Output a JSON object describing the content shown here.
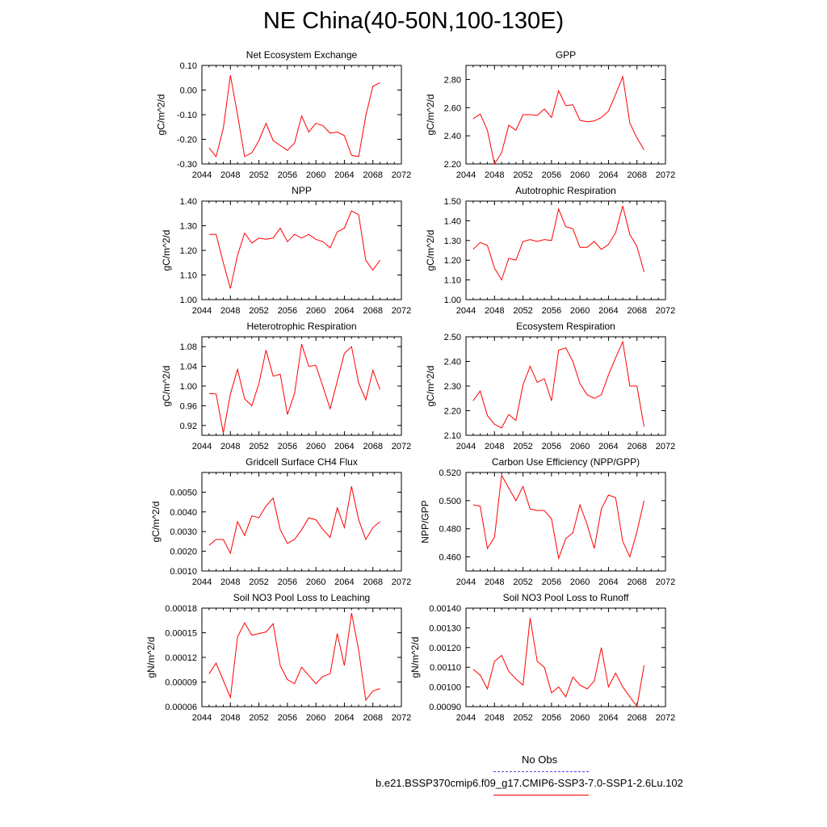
{
  "figure": {
    "title": "NE China(40-50N,100-130E)",
    "legend": [
      {
        "label": "No Obs",
        "color": "#4a4ae8",
        "dash": "dashed"
      },
      {
        "label": "b.e21.BSSP370cmip6.f09_g17.CMIP6-SSP3-7.0-SSP1-2.6Lu.102",
        "color": "#ff0000",
        "dash": "solid"
      }
    ]
  },
  "chart_data": [
    {
      "type": "line",
      "title": "Net Ecosystem Exchange",
      "ylabel": "gC/m^2/d",
      "xlabel": "",
      "xlim": [
        2044,
        2072
      ],
      "ylim": [
        -0.3,
        0.1
      ],
      "xticks": [
        2044,
        2048,
        2052,
        2056,
        2060,
        2064,
        2068,
        2072
      ],
      "yticks": [
        -0.3,
        -0.2,
        -0.1,
        0.0,
        0.1
      ],
      "yticklabels": [
        "-0.30",
        "-0.20",
        "-0.10",
        "0.00",
        "0.10"
      ],
      "grid": false,
      "series": [
        {
          "color": "#ff0000",
          "x": [
            2045,
            2046,
            2047,
            2048,
            2049,
            2050,
            2051,
            2052,
            2053,
            2054,
            2055,
            2056,
            2057,
            2058,
            2059,
            2060,
            2061,
            2062,
            2063,
            2064,
            2065,
            2066,
            2067,
            2068,
            2069
          ],
          "values": [
            -0.235,
            -0.27,
            -0.155,
            0.06,
            -0.1,
            -0.27,
            -0.255,
            -0.205,
            -0.135,
            -0.205,
            -0.225,
            -0.245,
            -0.215,
            -0.105,
            -0.17,
            -0.135,
            -0.145,
            -0.175,
            -0.17,
            -0.185,
            -0.265,
            -0.27,
            -0.105,
            0.015,
            0.03
          ]
        }
      ]
    },
    {
      "type": "line",
      "title": "GPP",
      "ylabel": "gC/m^2/d",
      "xlabel": "",
      "xlim": [
        2044,
        2072
      ],
      "ylim": [
        2.2,
        2.9
      ],
      "xticks": [
        2044,
        2048,
        2052,
        2056,
        2060,
        2064,
        2068,
        2072
      ],
      "yticks": [
        2.2,
        2.4,
        2.6,
        2.8
      ],
      "yticklabels": [
        "2.20",
        "2.40",
        "2.60",
        "2.80"
      ],
      "grid": false,
      "series": [
        {
          "color": "#ff0000",
          "x": [
            2045,
            2046,
            2047,
            2048,
            2049,
            2050,
            2051,
            2052,
            2053,
            2054,
            2055,
            2056,
            2057,
            2058,
            2059,
            2060,
            2061,
            2062,
            2063,
            2064,
            2065,
            2066,
            2067,
            2068,
            2069
          ],
          "values": [
            2.52,
            2.555,
            2.44,
            2.2,
            2.28,
            2.475,
            2.44,
            2.55,
            2.55,
            2.545,
            2.59,
            2.53,
            2.72,
            2.615,
            2.62,
            2.51,
            2.5,
            2.505,
            2.53,
            2.575,
            2.695,
            2.82,
            2.49,
            2.385,
            2.3
          ]
        }
      ]
    },
    {
      "type": "line",
      "title": "NPP",
      "ylabel": "gC/m^2/d",
      "xlabel": "",
      "xlim": [
        2044,
        2072
      ],
      "ylim": [
        1.0,
        1.4
      ],
      "xticks": [
        2044,
        2048,
        2052,
        2056,
        2060,
        2064,
        2068,
        2072
      ],
      "yticks": [
        1.0,
        1.1,
        1.2,
        1.3,
        1.4
      ],
      "yticklabels": [
        "1.00",
        "1.10",
        "1.20",
        "1.30",
        "1.40"
      ],
      "grid": false,
      "series": [
        {
          "color": "#ff0000",
          "x": [
            2045,
            2046,
            2047,
            2048,
            2049,
            2050,
            2051,
            2052,
            2053,
            2054,
            2055,
            2056,
            2057,
            2058,
            2059,
            2060,
            2061,
            2062,
            2063,
            2064,
            2065,
            2066,
            2067,
            2068,
            2069
          ],
          "values": [
            1.265,
            1.265,
            1.15,
            1.045,
            1.18,
            1.27,
            1.23,
            1.25,
            1.245,
            1.25,
            1.29,
            1.235,
            1.265,
            1.25,
            1.265,
            1.245,
            1.235,
            1.21,
            1.275,
            1.29,
            1.36,
            1.345,
            1.16,
            1.12,
            1.16
          ]
        }
      ]
    },
    {
      "type": "line",
      "title": "Autotrophic Respiration",
      "ylabel": "gC/m^2/d",
      "xlabel": "",
      "xlim": [
        2044,
        2072
      ],
      "ylim": [
        1.0,
        1.5
      ],
      "xticks": [
        2044,
        2048,
        2052,
        2056,
        2060,
        2064,
        2068,
        2072
      ],
      "yticks": [
        1.0,
        1.1,
        1.2,
        1.3,
        1.4,
        1.5
      ],
      "yticklabels": [
        "1.00",
        "1.10",
        "1.20",
        "1.30",
        "1.40",
        "1.50"
      ],
      "grid": false,
      "series": [
        {
          "color": "#ff0000",
          "x": [
            2045,
            2046,
            2047,
            2048,
            2049,
            2050,
            2051,
            2052,
            2053,
            2054,
            2055,
            2056,
            2057,
            2058,
            2059,
            2060,
            2061,
            2062,
            2063,
            2064,
            2065,
            2066,
            2067,
            2068,
            2069
          ],
          "values": [
            1.255,
            1.29,
            1.275,
            1.16,
            1.1,
            1.21,
            1.2,
            1.295,
            1.305,
            1.295,
            1.305,
            1.3,
            1.46,
            1.37,
            1.36,
            1.265,
            1.265,
            1.295,
            1.255,
            1.28,
            1.34,
            1.475,
            1.33,
            1.27,
            1.14
          ]
        }
      ]
    },
    {
      "type": "line",
      "title": "Heterotrophic Respiration",
      "ylabel": "gC/m^2/d",
      "xlabel": "",
      "xlim": [
        2044,
        2072
      ],
      "ylim": [
        0.9,
        1.1
      ],
      "xticks": [
        2044,
        2048,
        2052,
        2056,
        2060,
        2064,
        2068,
        2072
      ],
      "yticks": [
        0.92,
        0.96,
        1.0,
        1.04,
        1.08
      ],
      "yticklabels": [
        "0.92",
        "0.96",
        "1.00",
        "1.04",
        "1.08"
      ],
      "grid": false,
      "series": [
        {
          "color": "#ff0000",
          "x": [
            2045,
            2046,
            2047,
            2048,
            2049,
            2050,
            2051,
            2052,
            2053,
            2054,
            2055,
            2056,
            2057,
            2058,
            2059,
            2060,
            2061,
            2062,
            2063,
            2064,
            2065,
            2066,
            2067,
            2068,
            2069
          ],
          "values": [
            0.985,
            0.984,
            0.905,
            0.984,
            1.034,
            0.974,
            0.96,
            1.005,
            1.073,
            1.02,
            1.024,
            0.942,
            0.985,
            1.085,
            1.04,
            1.042,
            0.998,
            0.954,
            1.01,
            1.066,
            1.08,
            1.006,
            0.972,
            1.032,
            0.993
          ]
        }
      ]
    },
    {
      "type": "line",
      "title": "Ecosystem Respiration",
      "ylabel": "gC/m^2/d",
      "xlabel": "",
      "xlim": [
        2044,
        2072
      ],
      "ylim": [
        2.1,
        2.5
      ],
      "xticks": [
        2044,
        2048,
        2052,
        2056,
        2060,
        2064,
        2068,
        2072
      ],
      "yticks": [
        2.1,
        2.2,
        2.3,
        2.4,
        2.5
      ],
      "yticklabels": [
        "2.10",
        "2.20",
        "2.30",
        "2.40",
        "2.50"
      ],
      "grid": false,
      "series": [
        {
          "color": "#ff0000",
          "x": [
            2045,
            2046,
            2047,
            2048,
            2049,
            2050,
            2051,
            2052,
            2053,
            2054,
            2055,
            2056,
            2057,
            2058,
            2059,
            2060,
            2061,
            2062,
            2063,
            2064,
            2065,
            2066,
            2067,
            2068,
            2069
          ],
          "values": [
            2.24,
            2.28,
            2.18,
            2.145,
            2.13,
            2.185,
            2.16,
            2.305,
            2.38,
            2.315,
            2.33,
            2.24,
            2.445,
            2.455,
            2.4,
            2.31,
            2.265,
            2.25,
            2.265,
            2.345,
            2.415,
            2.48,
            2.3,
            2.3,
            2.135
          ]
        }
      ]
    },
    {
      "type": "line",
      "title": "Gridcell Surface CH4 Flux",
      "ylabel": "gC/m^2/d",
      "xlabel": "",
      "xlim": [
        2044,
        2072
      ],
      "ylim": [
        0.001,
        0.006
      ],
      "xticks": [
        2044,
        2048,
        2052,
        2056,
        2060,
        2064,
        2068,
        2072
      ],
      "yticks": [
        0.001,
        0.002,
        0.003,
        0.004,
        0.005
      ],
      "yticklabels": [
        "0.0010",
        "0.0020",
        "0.0030",
        "0.0040",
        "0.0050"
      ],
      "grid": false,
      "series": [
        {
          "color": "#ff0000",
          "x": [
            2045,
            2046,
            2047,
            2048,
            2049,
            2050,
            2051,
            2052,
            2053,
            2054,
            2055,
            2056,
            2057,
            2058,
            2059,
            2060,
            2061,
            2062,
            2063,
            2064,
            2065,
            2066,
            2067,
            2068,
            2069
          ],
          "values": [
            0.0023,
            0.0026,
            0.0026,
            0.0019,
            0.0035,
            0.0028,
            0.0038,
            0.0037,
            0.0043,
            0.0047,
            0.0031,
            0.0024,
            0.0026,
            0.0031,
            0.0037,
            0.0036,
            0.0031,
            0.0027,
            0.0042,
            0.0032,
            0.0053,
            0.0036,
            0.0026,
            0.0032,
            0.0035
          ]
        }
      ]
    },
    {
      "type": "line",
      "title": "Carbon Use Efficiency (NPP/GPP)",
      "ylabel": "NPP/GPP",
      "xlabel": "",
      "xlim": [
        2044,
        2072
      ],
      "ylim": [
        0.45,
        0.52
      ],
      "xticks": [
        2044,
        2048,
        2052,
        2056,
        2060,
        2064,
        2068,
        2072
      ],
      "yticks": [
        0.46,
        0.48,
        0.5,
        0.52
      ],
      "yticklabels": [
        "0.460",
        "0.480",
        "0.500",
        "0.520"
      ],
      "grid": false,
      "series": [
        {
          "color": "#ff0000",
          "x": [
            2045,
            2046,
            2047,
            2048,
            2049,
            2050,
            2051,
            2052,
            2053,
            2054,
            2055,
            2056,
            2057,
            2058,
            2059,
            2060,
            2061,
            2062,
            2063,
            2064,
            2065,
            2066,
            2067,
            2068,
            2069
          ],
          "values": [
            0.497,
            0.496,
            0.466,
            0.474,
            0.518,
            0.509,
            0.5,
            0.51,
            0.494,
            0.493,
            0.493,
            0.487,
            0.459,
            0.473,
            0.477,
            0.497,
            0.483,
            0.466,
            0.494,
            0.504,
            0.502,
            0.471,
            0.46,
            0.478,
            0.5
          ]
        }
      ]
    },
    {
      "type": "line",
      "title": "Soil NO3 Pool Loss to Leaching",
      "ylabel": "gN/m^2/d",
      "xlabel": "",
      "xlim": [
        2044,
        2072
      ],
      "ylim": [
        6e-05,
        0.00018
      ],
      "xticks": [
        2044,
        2048,
        2052,
        2056,
        2060,
        2064,
        2068,
        2072
      ],
      "yticks": [
        6e-05,
        9e-05,
        0.00012,
        0.00015,
        0.00018
      ],
      "yticklabels": [
        "0.00006",
        "0.00009",
        "0.00012",
        "0.00015",
        "0.00018"
      ],
      "grid": false,
      "series": [
        {
          "color": "#ff0000",
          "x": [
            2045,
            2046,
            2047,
            2048,
            2049,
            2050,
            2051,
            2052,
            2053,
            2054,
            2055,
            2056,
            2057,
            2058,
            2059,
            2060,
            2061,
            2062,
            2063,
            2064,
            2065,
            2066,
            2067,
            2068,
            2069
          ],
          "values": [
            0.0001,
            0.000113,
            9.2e-05,
            7.1e-05,
            0.000145,
            0.000162,
            0.000147,
            0.000149,
            0.000151,
            0.000161,
            0.00011,
            9.3e-05,
            8.8e-05,
            0.000108,
            9.8e-05,
            8.8e-05,
            9.7e-05,
            0.0001,
            0.000149,
            0.00011,
            0.000174,
            0.000129,
            6.8e-05,
            7.9e-05,
            8.2e-05
          ]
        }
      ]
    },
    {
      "type": "line",
      "title": "Soil NO3 Pool Loss to Runoff",
      "ylabel": "gN/m^2/d",
      "xlabel": "",
      "xlim": [
        2044,
        2072
      ],
      "ylim": [
        0.0009,
        0.0014
      ],
      "xticks": [
        2044,
        2048,
        2052,
        2056,
        2060,
        2064,
        2068,
        2072
      ],
      "yticks": [
        0.0009,
        0.001,
        0.0011,
        0.0012,
        0.0013,
        0.0014
      ],
      "yticklabels": [
        "0.00090",
        "0.00100",
        "0.00110",
        "0.00120",
        "0.00130",
        "0.00140"
      ],
      "grid": false,
      "series": [
        {
          "color": "#ff0000",
          "x": [
            2045,
            2046,
            2047,
            2048,
            2049,
            2050,
            2051,
            2052,
            2053,
            2054,
            2055,
            2056,
            2057,
            2058,
            2059,
            2060,
            2061,
            2062,
            2063,
            2064,
            2065,
            2066,
            2067,
            2068,
            2069
          ],
          "values": [
            0.00109,
            0.00106,
            0.00099,
            0.00113,
            0.00116,
            0.00108,
            0.00104,
            0.00101,
            0.00135,
            0.00113,
            0.0011,
            0.00097,
            0.001,
            0.00095,
            0.00105,
            0.00101,
            0.00099,
            0.00103,
            0.0012,
            0.001,
            0.00107,
            0.001,
            0.00095,
            0.0009,
            0.00111
          ]
        }
      ]
    }
  ]
}
